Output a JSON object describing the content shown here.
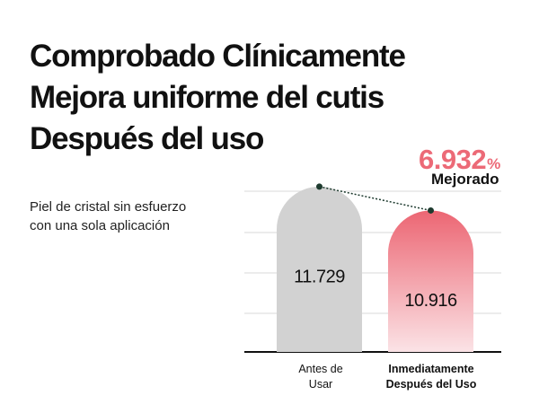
{
  "header": {
    "title_lines": [
      "Comprobado Clínicamente",
      "Mejora uniforme del cutis",
      "Después del uso"
    ],
    "subtitle_lines": [
      "Piel de cristal sin esfuerzo",
      "con una sola aplicación"
    ]
  },
  "callout": {
    "value": "6.932",
    "unit": "%",
    "label": "Mejorado"
  },
  "colors": {
    "before": "#d2d2d2",
    "after_top": "#ec6673",
    "after_bottom": "#fbe3e6",
    "accent": "#ec6a77",
    "connector": "#1d3a2e"
  },
  "chart_data": {
    "type": "bar",
    "categories": [
      [
        "Antes de",
        "Usar"
      ],
      [
        "Inmediatamente",
        "Después del Uso"
      ]
    ],
    "values": [
      11.729,
      10.916
    ],
    "data_labels": [
      "11.729",
      "10.916"
    ],
    "ylim": [
      6.1,
      12.0
    ],
    "grid": true,
    "bar_shape": "rounded-top",
    "connector": "dotted line between bar tops"
  }
}
